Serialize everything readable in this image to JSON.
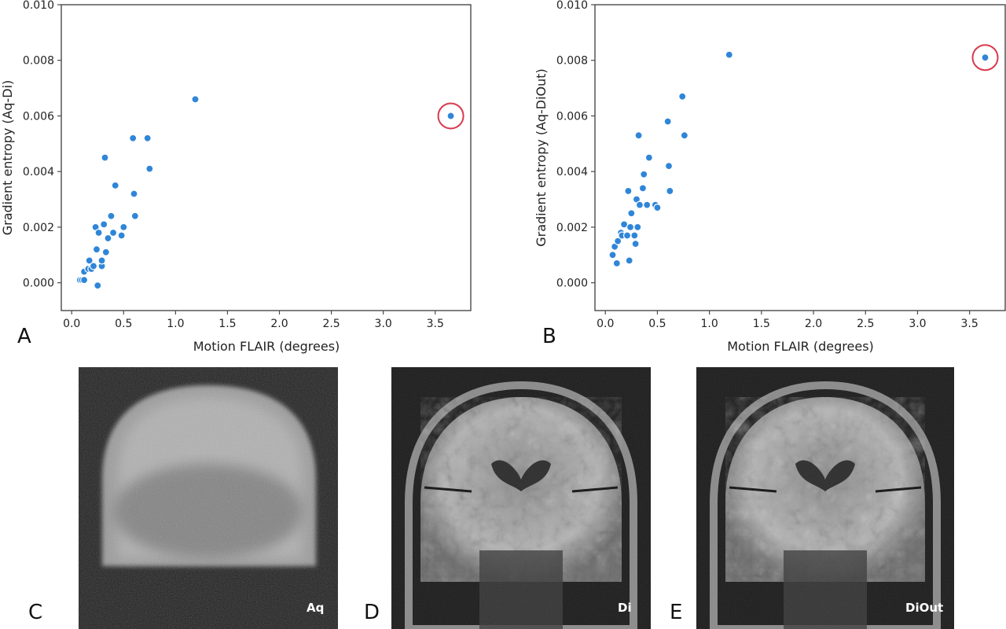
{
  "panel_letters": {
    "a": "A",
    "b": "B",
    "c": "C",
    "d": "D",
    "e": "E"
  },
  "colors": {
    "point": "#2f86d8",
    "highlight_ring": "#d83a4e",
    "axis": "#4a4a4a"
  },
  "chart_data": [
    {
      "type": "scatter",
      "panel": "A",
      "xlabel": "Motion FLAIR (degrees)",
      "ylabel": "Gradient entropy (Aq-Di)",
      "xlim": [
        -0.1,
        3.85
      ],
      "ylim": [
        -0.001,
        0.01
      ],
      "xticks": [
        "0.0",
        "0.5",
        "1.0",
        "1.5",
        "2.0",
        "2.5",
        "3.0",
        "3.5"
      ],
      "yticks": [
        "0.000",
        "0.002",
        "0.004",
        "0.006",
        "0.008",
        "0.010"
      ],
      "grid": false,
      "points": [
        [
          0.08,
          0.0001
        ],
        [
          0.1,
          0.0001
        ],
        [
          0.12,
          0.0001
        ],
        [
          0.12,
          0.0004
        ],
        [
          0.16,
          0.0005
        ],
        [
          0.17,
          0.0008
        ],
        [
          0.19,
          0.0005
        ],
        [
          0.21,
          0.0006
        ],
        [
          0.23,
          0.002
        ],
        [
          0.24,
          0.0012
        ],
        [
          0.25,
          -0.0001
        ],
        [
          0.26,
          0.0018
        ],
        [
          0.29,
          0.0006
        ],
        [
          0.29,
          0.0008
        ],
        [
          0.31,
          0.0021
        ],
        [
          0.32,
          0.0045
        ],
        [
          0.33,
          0.0011
        ],
        [
          0.35,
          0.0016
        ],
        [
          0.38,
          0.0024
        ],
        [
          0.4,
          0.0018
        ],
        [
          0.42,
          0.0035
        ],
        [
          0.48,
          0.0017
        ],
        [
          0.5,
          0.002
        ],
        [
          0.59,
          0.0052
        ],
        [
          0.6,
          0.0032
        ],
        [
          0.61,
          0.0024
        ],
        [
          0.73,
          0.0052
        ],
        [
          0.75,
          0.0041
        ],
        [
          1.19,
          0.0066
        ],
        [
          3.65,
          0.006
        ]
      ],
      "highlighted_point": [
        3.65,
        0.006
      ]
    },
    {
      "type": "scatter",
      "panel": "B",
      "xlabel": "Motion FLAIR (degrees)",
      "ylabel": "Gradient entropy (Aq-DiOut)",
      "xlim": [
        -0.1,
        3.85
      ],
      "ylim": [
        -0.001,
        0.01
      ],
      "xticks": [
        "0.0",
        "0.5",
        "1.0",
        "1.5",
        "2.0",
        "2.5",
        "3.0",
        "3.5"
      ],
      "yticks": [
        "0.000",
        "0.002",
        "0.004",
        "0.006",
        "0.008",
        "0.010"
      ],
      "grid": false,
      "points": [
        [
          0.07,
          0.001
        ],
        [
          0.09,
          0.0013
        ],
        [
          0.11,
          0.0007
        ],
        [
          0.12,
          0.0015
        ],
        [
          0.15,
          0.0018
        ],
        [
          0.16,
          0.0017
        ],
        [
          0.18,
          0.0021
        ],
        [
          0.21,
          0.0017
        ],
        [
          0.22,
          0.0033
        ],
        [
          0.23,
          0.0008
        ],
        [
          0.24,
          0.002
        ],
        [
          0.25,
          0.0025
        ],
        [
          0.28,
          0.0017
        ],
        [
          0.29,
          0.0014
        ],
        [
          0.3,
          0.003
        ],
        [
          0.31,
          0.002
        ],
        [
          0.32,
          0.0053
        ],
        [
          0.33,
          0.0028
        ],
        [
          0.36,
          0.0034
        ],
        [
          0.37,
          0.0039
        ],
        [
          0.4,
          0.0028
        ],
        [
          0.42,
          0.0045
        ],
        [
          0.48,
          0.0028
        ],
        [
          0.5,
          0.0027
        ],
        [
          0.6,
          0.0058
        ],
        [
          0.61,
          0.0042
        ],
        [
          0.62,
          0.0033
        ],
        [
          0.74,
          0.0067
        ],
        [
          0.76,
          0.0053
        ],
        [
          1.19,
          0.0082
        ],
        [
          3.65,
          0.0081
        ]
      ],
      "highlighted_point": [
        3.65,
        0.0081
      ]
    }
  ],
  "mri_images": [
    {
      "panel": "C",
      "label": "Aq",
      "appearance": "motion-corrupted coronal FLAIR, blurred"
    },
    {
      "panel": "D",
      "label": "Di",
      "appearance": "corrected coronal FLAIR, sharp"
    },
    {
      "panel": "E",
      "label": "DiOut",
      "appearance": "corrected coronal FLAIR, sharp"
    }
  ]
}
